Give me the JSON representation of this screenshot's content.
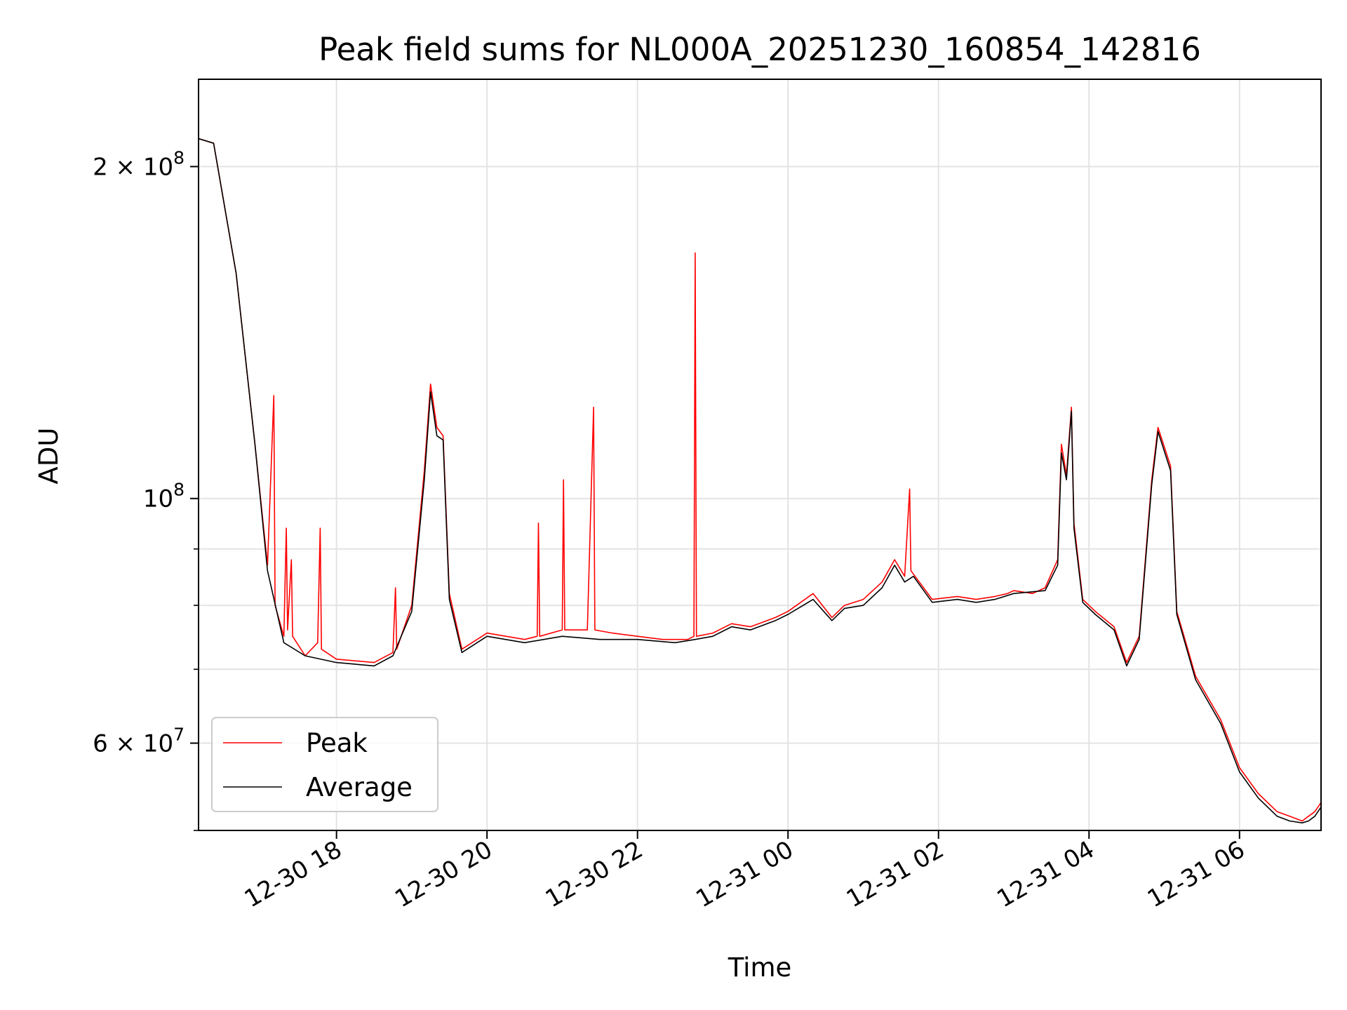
{
  "chart_data": {
    "type": "line",
    "title": "Peak field sums for NL000A_20251230_160854_142816",
    "xlabel": "Time",
    "ylabel": "ADU",
    "yscale": "log",
    "ylim": [
      50000000,
      240000000
    ],
    "xlim": [
      "2025-12-30 16:10",
      "2025-12-31 07:05"
    ],
    "grid": true,
    "legend_position": "lower-left",
    "x_tick_labels": [
      "12-30 18",
      "12-30 20",
      "12-30 22",
      "12-31 00",
      "12-31 02",
      "12-31 04",
      "12-31 06"
    ],
    "x_ticks": [
      "2025-12-30 18:00",
      "2025-12-30 20:00",
      "2025-12-30 22:00",
      "2025-12-31 00:00",
      "2025-12-31 02:00",
      "2025-12-31 04:00",
      "2025-12-31 06:00"
    ],
    "y_major_ticks": [
      {
        "value": 60000000,
        "mantissa": "6",
        "exp": "7"
      },
      {
        "value": 100000000,
        "mantissa": "",
        "exp": "8"
      },
      {
        "value": 200000000,
        "mantissa": "2",
        "exp": "8"
      }
    ],
    "y_minor_ticks": [
      50000000,
      70000000,
      80000000,
      90000000
    ],
    "series": [
      {
        "name": "Peak",
        "color": "#ff0000",
        "points": [
          [
            "2025-12-30 16:10",
            212000000
          ],
          [
            "2025-12-30 16:22",
            210000000
          ],
          [
            "2025-12-30 16:40",
            160000000
          ],
          [
            "2025-12-30 16:55",
            112000000
          ],
          [
            "2025-12-30 17:05",
            87000000
          ],
          [
            "2025-12-30 17:10",
            124000000
          ],
          [
            "2025-12-30 17:11",
            80000000
          ],
          [
            "2025-12-30 17:18",
            75000000
          ],
          [
            "2025-12-30 17:20",
            94000000
          ],
          [
            "2025-12-30 17:21",
            76000000
          ],
          [
            "2025-12-30 17:24",
            88000000
          ],
          [
            "2025-12-30 17:25",
            75000000
          ],
          [
            "2025-12-30 17:35",
            72000000
          ],
          [
            "2025-12-30 17:45",
            74000000
          ],
          [
            "2025-12-30 17:47",
            94000000
          ],
          [
            "2025-12-30 17:48",
            73000000
          ],
          [
            "2025-12-30 18:00",
            71500000
          ],
          [
            "2025-12-30 18:30",
            71000000
          ],
          [
            "2025-12-30 18:45",
            72500000
          ],
          [
            "2025-12-30 18:47",
            83000000
          ],
          [
            "2025-12-30 18:48",
            73000000
          ],
          [
            "2025-12-30 19:00",
            80000000
          ],
          [
            "2025-12-30 19:10",
            106000000
          ],
          [
            "2025-12-30 19:15",
            127000000
          ],
          [
            "2025-12-30 19:20",
            116000000
          ],
          [
            "2025-12-30 19:25",
            114000000
          ],
          [
            "2025-12-30 19:30",
            82000000
          ],
          [
            "2025-12-30 19:40",
            73000000
          ],
          [
            "2025-12-30 20:00",
            75500000
          ],
          [
            "2025-12-30 20:30",
            74500000
          ],
          [
            "2025-12-30 20:40",
            75000000
          ],
          [
            "2025-12-30 20:41",
            95000000
          ],
          [
            "2025-12-30 20:42",
            75000000
          ],
          [
            "2025-12-30 21:00",
            76000000
          ],
          [
            "2025-12-30 21:01",
            104000000
          ],
          [
            "2025-12-30 21:02",
            76000000
          ],
          [
            "2025-12-30 21:20",
            76000000
          ],
          [
            "2025-12-30 21:25",
            121000000
          ],
          [
            "2025-12-30 21:26",
            76000000
          ],
          [
            "2025-12-30 21:40",
            75500000
          ],
          [
            "2025-12-30 22:00",
            75000000
          ],
          [
            "2025-12-30 22:20",
            74500000
          ],
          [
            "2025-12-30 22:40",
            74500000
          ],
          [
            "2025-12-30 22:45",
            75000000
          ],
          [
            "2025-12-30 22:46",
            167000000
          ],
          [
            "2025-12-30 22:47",
            75000000
          ],
          [
            "2025-12-30 23:00",
            75500000
          ],
          [
            "2025-12-30 23:15",
            77000000
          ],
          [
            "2025-12-30 23:30",
            76500000
          ],
          [
            "2025-12-30 23:50",
            78000000
          ],
          [
            "2025-12-31 00:00",
            79000000
          ],
          [
            "2025-12-31 00:20",
            82000000
          ],
          [
            "2025-12-31 00:35",
            78000000
          ],
          [
            "2025-12-31 00:45",
            80000000
          ],
          [
            "2025-12-31 01:00",
            81000000
          ],
          [
            "2025-12-31 01:15",
            84000000
          ],
          [
            "2025-12-31 01:25",
            88000000
          ],
          [
            "2025-12-31 01:33",
            85000000
          ],
          [
            "2025-12-31 01:37",
            102000000
          ],
          [
            "2025-12-31 01:38",
            86000000
          ],
          [
            "2025-12-31 01:55",
            81000000
          ],
          [
            "2025-12-31 02:15",
            81500000
          ],
          [
            "2025-12-31 02:30",
            81000000
          ],
          [
            "2025-12-31 02:45",
            81500000
          ],
          [
            "2025-12-31 02:55",
            82000000
          ],
          [
            "2025-12-31 03:00",
            82500000
          ],
          [
            "2025-12-31 03:15",
            82000000
          ],
          [
            "2025-12-31 03:25",
            83000000
          ],
          [
            "2025-12-31 03:35",
            88000000
          ],
          [
            "2025-12-31 03:38",
            112000000
          ],
          [
            "2025-12-31 03:42",
            105000000
          ],
          [
            "2025-12-31 03:46",
            121000000
          ],
          [
            "2025-12-31 03:48",
            95000000
          ],
          [
            "2025-12-31 03:55",
            81000000
          ],
          [
            "2025-12-31 04:05",
            79000000
          ],
          [
            "2025-12-31 04:20",
            76500000
          ],
          [
            "2025-12-31 04:30",
            71000000
          ],
          [
            "2025-12-31 04:40",
            75000000
          ],
          [
            "2025-12-31 04:50",
            104000000
          ],
          [
            "2025-12-31 04:55",
            116000000
          ],
          [
            "2025-12-31 05:05",
            107000000
          ],
          [
            "2025-12-31 05:10",
            79000000
          ],
          [
            "2025-12-31 05:25",
            69000000
          ],
          [
            "2025-12-31 05:45",
            63000000
          ],
          [
            "2025-12-31 06:00",
            57000000
          ],
          [
            "2025-12-31 06:15",
            54000000
          ],
          [
            "2025-12-31 06:30",
            52000000
          ],
          [
            "2025-12-31 06:40",
            51500000
          ],
          [
            "2025-12-31 06:50",
            51000000
          ],
          [
            "2025-12-31 06:55",
            51500000
          ],
          [
            "2025-12-31 07:00",
            52000000
          ],
          [
            "2025-12-31 07:05",
            53000000
          ]
        ]
      },
      {
        "name": "Average",
        "color": "#000000",
        "points": [
          [
            "2025-12-30 16:10",
            212000000
          ],
          [
            "2025-12-30 16:22",
            210000000
          ],
          [
            "2025-12-30 16:40",
            160000000
          ],
          [
            "2025-12-30 16:55",
            112000000
          ],
          [
            "2025-12-30 17:05",
            86000000
          ],
          [
            "2025-12-30 17:18",
            74000000
          ],
          [
            "2025-12-30 17:35",
            72000000
          ],
          [
            "2025-12-30 18:00",
            71000000
          ],
          [
            "2025-12-30 18:30",
            70500000
          ],
          [
            "2025-12-30 18:45",
            72000000
          ],
          [
            "2025-12-30 19:00",
            79000000
          ],
          [
            "2025-12-30 19:10",
            104000000
          ],
          [
            "2025-12-30 19:15",
            125000000
          ],
          [
            "2025-12-30 19:20",
            114000000
          ],
          [
            "2025-12-30 19:25",
            113000000
          ],
          [
            "2025-12-30 19:30",
            81000000
          ],
          [
            "2025-12-30 19:40",
            72500000
          ],
          [
            "2025-12-30 20:00",
            75000000
          ],
          [
            "2025-12-30 20:30",
            74000000
          ],
          [
            "2025-12-30 21:00",
            75000000
          ],
          [
            "2025-12-30 21:30",
            74500000
          ],
          [
            "2025-12-30 22:00",
            74500000
          ],
          [
            "2025-12-30 22:30",
            74000000
          ],
          [
            "2025-12-30 22:46",
            74500000
          ],
          [
            "2025-12-30 23:00",
            75000000
          ],
          [
            "2025-12-30 23:15",
            76500000
          ],
          [
            "2025-12-30 23:30",
            76000000
          ],
          [
            "2025-12-30 23:50",
            77500000
          ],
          [
            "2025-12-31 00:00",
            78500000
          ],
          [
            "2025-12-31 00:20",
            81000000
          ],
          [
            "2025-12-31 00:35",
            77500000
          ],
          [
            "2025-12-31 00:45",
            79500000
          ],
          [
            "2025-12-31 01:00",
            80000000
          ],
          [
            "2025-12-31 01:15",
            83000000
          ],
          [
            "2025-12-31 01:25",
            87000000
          ],
          [
            "2025-12-31 01:33",
            84000000
          ],
          [
            "2025-12-31 01:40",
            85000000
          ],
          [
            "2025-12-31 01:55",
            80500000
          ],
          [
            "2025-12-31 02:15",
            81000000
          ],
          [
            "2025-12-31 02:30",
            80500000
          ],
          [
            "2025-12-31 02:45",
            81000000
          ],
          [
            "2025-12-31 03:00",
            82000000
          ],
          [
            "2025-12-31 03:25",
            82500000
          ],
          [
            "2025-12-31 03:35",
            87000000
          ],
          [
            "2025-12-31 03:38",
            110000000
          ],
          [
            "2025-12-31 03:42",
            104000000
          ],
          [
            "2025-12-31 03:46",
            120000000
          ],
          [
            "2025-12-31 03:48",
            94000000
          ],
          [
            "2025-12-31 03:55",
            80500000
          ],
          [
            "2025-12-31 04:05",
            78500000
          ],
          [
            "2025-12-31 04:20",
            76000000
          ],
          [
            "2025-12-31 04:30",
            70500000
          ],
          [
            "2025-12-31 04:40",
            74500000
          ],
          [
            "2025-12-31 04:50",
            103000000
          ],
          [
            "2025-12-31 04:55",
            115000000
          ],
          [
            "2025-12-31 05:05",
            106000000
          ],
          [
            "2025-12-31 05:10",
            78500000
          ],
          [
            "2025-12-31 05:25",
            68500000
          ],
          [
            "2025-12-31 05:45",
            62500000
          ],
          [
            "2025-12-31 06:00",
            56500000
          ],
          [
            "2025-12-31 06:15",
            53500000
          ],
          [
            "2025-12-31 06:30",
            51500000
          ],
          [
            "2025-12-31 06:40",
            51000000
          ],
          [
            "2025-12-31 06:50",
            50800000
          ],
          [
            "2025-12-31 06:55",
            51000000
          ],
          [
            "2025-12-31 07:00",
            51500000
          ],
          [
            "2025-12-31 07:05",
            52500000
          ]
        ]
      }
    ]
  }
}
